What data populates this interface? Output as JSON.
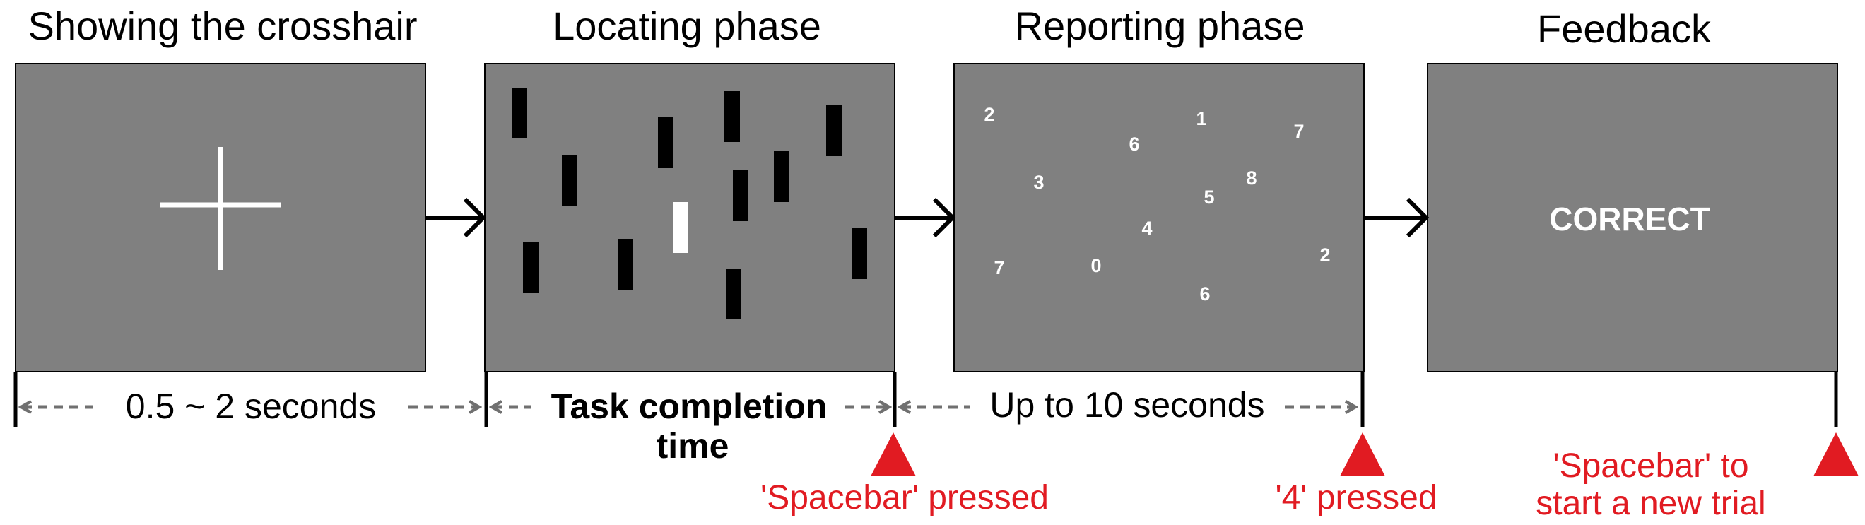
{
  "panels": [
    {
      "title": "Showing the crosshair"
    },
    {
      "title": "Locating phase"
    },
    {
      "title": "Reporting phase"
    },
    {
      "title": "Feedback",
      "message": "CORRECT"
    }
  ],
  "durations": {
    "crosshair": "0.5 ~ 2 seconds",
    "locating_line1": "Task completion",
    "locating_line2": "time",
    "reporting": "Up to 10 seconds"
  },
  "events": {
    "spacebar": "'Spacebar' pressed",
    "four": "'4' pressed",
    "new_trial_line1": "'Spacebar' to",
    "new_trial_line2": "start a new trial"
  },
  "reporting_digits": [
    "2",
    "1",
    "7",
    "6",
    "3",
    "8",
    "5",
    "4",
    "7",
    "0",
    "2",
    "6"
  ],
  "colors": {
    "panel": "#808080",
    "distractor": "#000000",
    "target": "#ffffff",
    "marker": "#e11b22",
    "arrow": "#707070"
  }
}
